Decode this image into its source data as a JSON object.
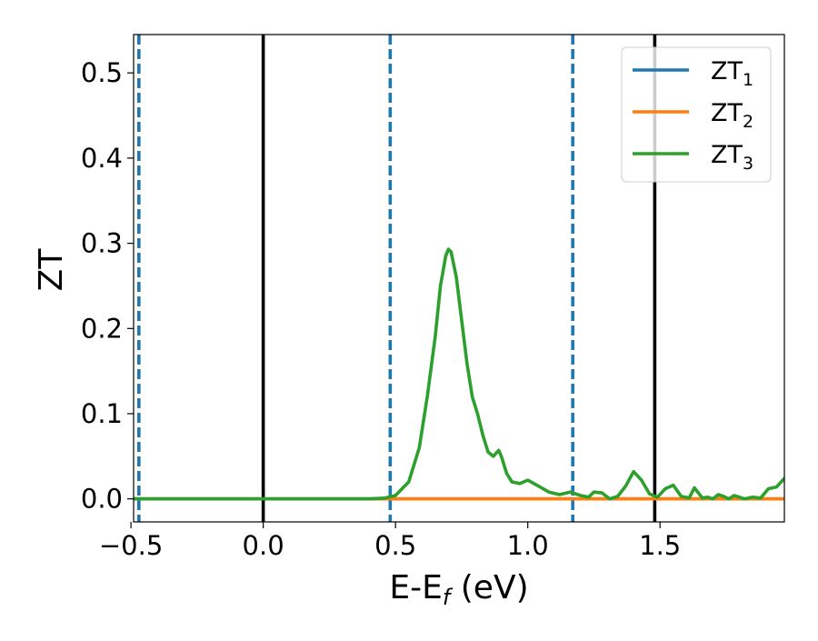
{
  "chart_data": {
    "type": "line",
    "xlabel": "E-E",
    "xlabel_sub": "f",
    "xlabel_unit": " (eV)",
    "ylabel": "ZT",
    "xlim": [
      -0.49,
      1.97
    ],
    "ylim": [
      -0.027,
      0.545
    ],
    "x_ticks": [
      -0.5,
      0.0,
      0.5,
      1.0,
      1.5
    ],
    "x_tick_labels": [
      "−0.5",
      "0.0",
      "0.5",
      "1.0",
      "1.5"
    ],
    "y_ticks": [
      0.0,
      0.1,
      0.2,
      0.3,
      0.4,
      0.5
    ],
    "y_tick_labels": [
      "0.0",
      "0.1",
      "0.2",
      "0.3",
      "0.4",
      "0.5"
    ],
    "legend_position": "top-right",
    "series": [
      {
        "name": "ZT",
        "sub": "1",
        "color": "#1f77b4",
        "x": [
          -0.49,
          0.0,
          0.5,
          1.0,
          1.5,
          1.97
        ],
        "y": [
          0.0,
          0.0,
          0.0,
          0.0,
          0.0,
          0.0
        ]
      },
      {
        "name": "ZT",
        "sub": "2",
        "color": "#ff7f0e",
        "x": [
          -0.49,
          0.0,
          0.5,
          1.0,
          1.5,
          1.97
        ],
        "y": [
          0.0,
          0.0,
          0.0,
          0.0,
          0.0,
          0.0
        ]
      },
      {
        "name": "ZT",
        "sub": "3",
        "color": "#2ca02c",
        "x": [
          -0.49,
          0.0,
          0.4,
          0.46,
          0.5,
          0.55,
          0.59,
          0.62,
          0.65,
          0.67,
          0.69,
          0.7,
          0.71,
          0.73,
          0.75,
          0.77,
          0.79,
          0.81,
          0.83,
          0.85,
          0.87,
          0.89,
          0.9,
          0.92,
          0.94,
          0.97,
          1.0,
          1.04,
          1.08,
          1.12,
          1.16,
          1.2,
          1.23,
          1.25,
          1.28,
          1.31,
          1.34,
          1.37,
          1.4,
          1.43,
          1.46,
          1.49,
          1.52,
          1.55,
          1.58,
          1.61,
          1.63,
          1.66,
          1.68,
          1.7,
          1.72,
          1.74,
          1.76,
          1.78,
          1.8,
          1.82,
          1.85,
          1.88,
          1.91,
          1.94,
          1.97
        ],
        "y": [
          0.0,
          0.0,
          0.0,
          0.001,
          0.004,
          0.02,
          0.06,
          0.12,
          0.19,
          0.25,
          0.285,
          0.293,
          0.29,
          0.26,
          0.21,
          0.16,
          0.12,
          0.1,
          0.075,
          0.055,
          0.05,
          0.057,
          0.05,
          0.03,
          0.02,
          0.018,
          0.022,
          0.015,
          0.008,
          0.005,
          0.008,
          0.004,
          0.002,
          0.008,
          0.007,
          0.0,
          0.003,
          0.015,
          0.032,
          0.022,
          0.006,
          0.002,
          0.012,
          0.016,
          0.003,
          0.001,
          0.013,
          0.001,
          0.002,
          0.0,
          0.005,
          0.003,
          0.0,
          0.004,
          0.002,
          0.0,
          0.002,
          0.001,
          0.012,
          0.014,
          0.024
        ]
      }
    ],
    "vlines": [
      {
        "x": 0.0,
        "style": "solid",
        "color": "#000000"
      },
      {
        "x": 1.48,
        "style": "solid",
        "color": "#000000"
      },
      {
        "x": -0.47,
        "style": "dashed",
        "color": "#1f77b4"
      },
      {
        "x": 0.48,
        "style": "dashed",
        "color": "#1f77b4"
      },
      {
        "x": 1.17,
        "style": "dashed",
        "color": "#1f77b4"
      }
    ]
  }
}
